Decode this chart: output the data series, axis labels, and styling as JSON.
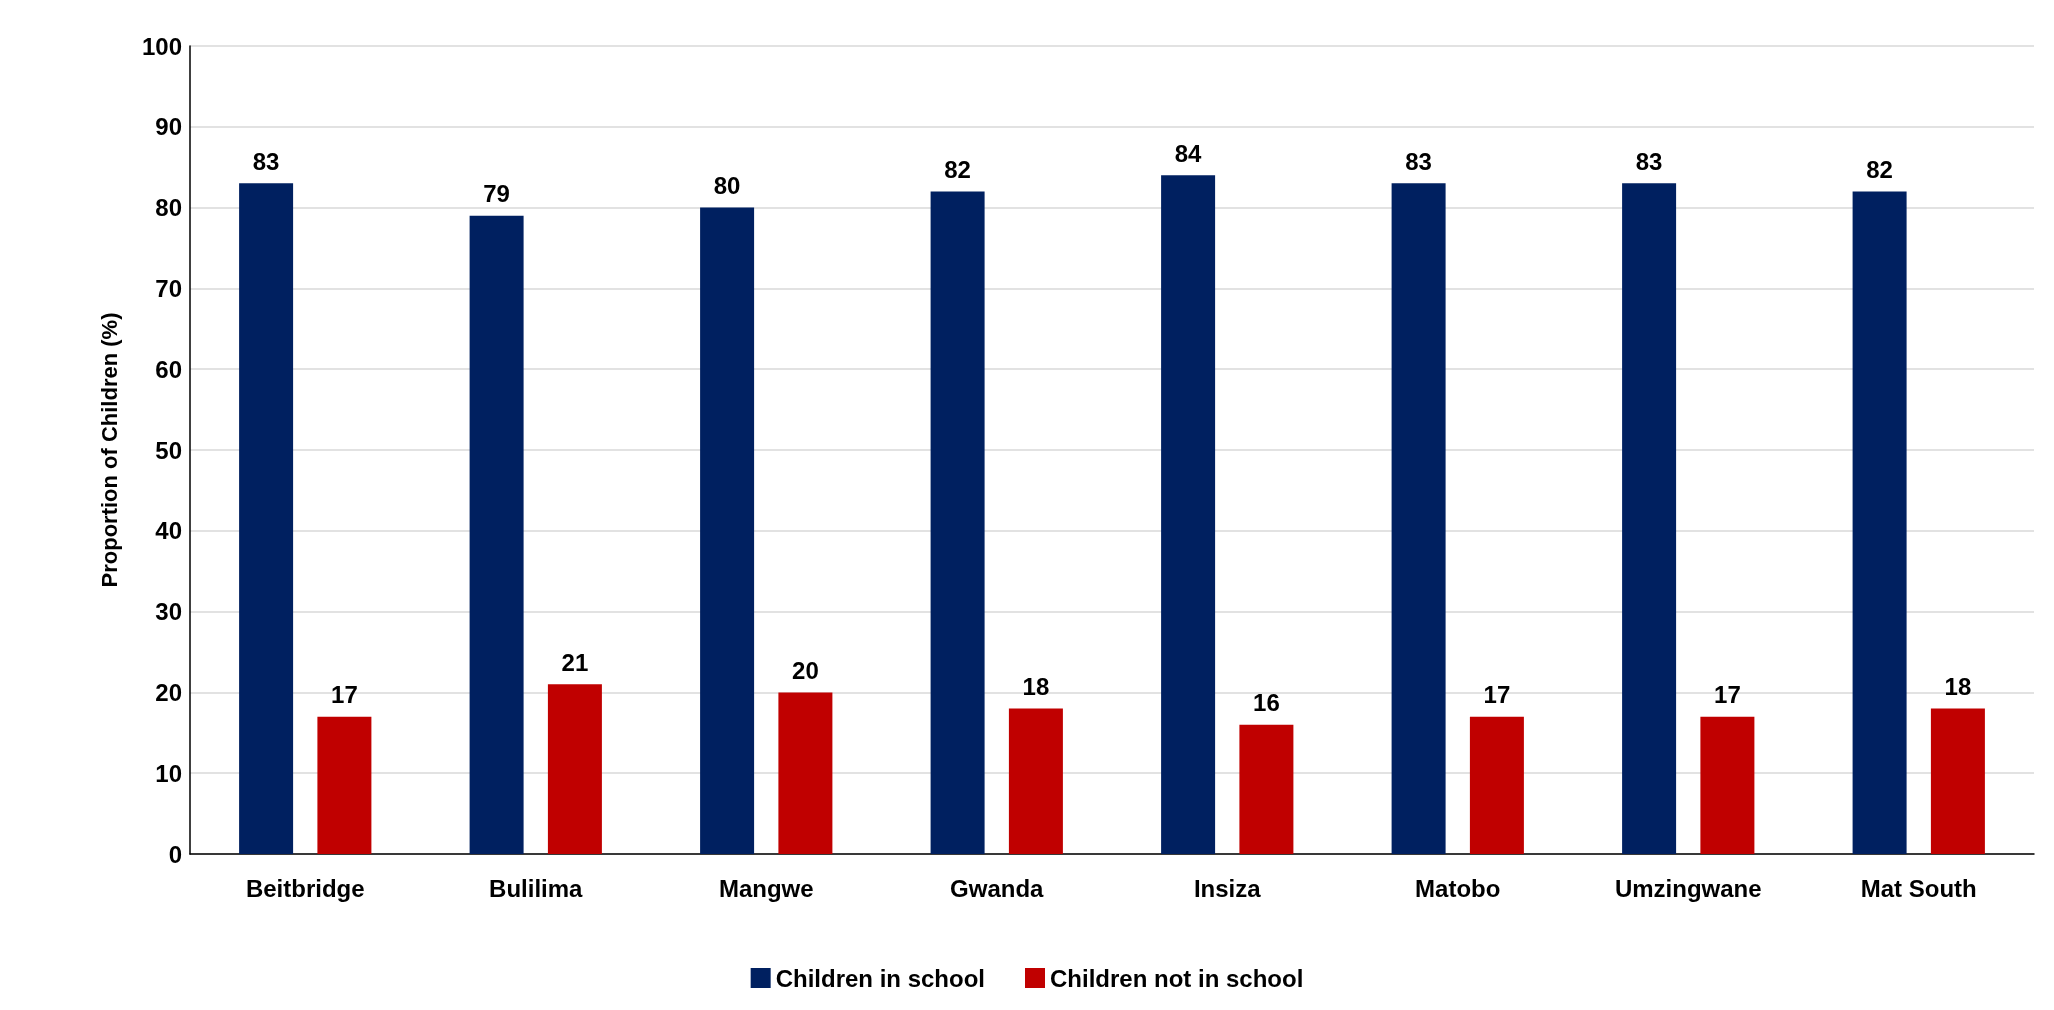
{
  "chart_data": {
    "type": "bar",
    "ylabel": "Proportion of Children (%)",
    "categories": [
      "Beitbridge",
      "Bulilima",
      "Mangwe",
      "Gwanda",
      "Insiza",
      "Matobo",
      "Umzingwane",
      "Mat South"
    ],
    "series": [
      {
        "name": "Children in school",
        "color": "#002060",
        "values": [
          83,
          79,
          80,
          82,
          84,
          83,
          83,
          82
        ]
      },
      {
        "name": "Children not in school",
        "color": "#c00000",
        "values": [
          17,
          21,
          20,
          18,
          16,
          17,
          17,
          18
        ]
      }
    ],
    "ylim": [
      0,
      100
    ],
    "yticks": [
      0,
      10,
      20,
      30,
      40,
      50,
      60,
      70,
      80,
      90,
      100
    ],
    "grid": "y",
    "legend": "bottom",
    "data_labels": true
  }
}
